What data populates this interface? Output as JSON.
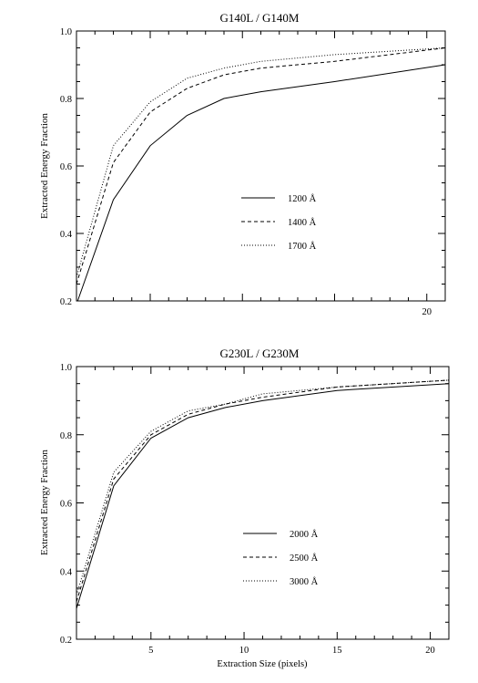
{
  "chart_data": [
    {
      "type": "line",
      "title": "G140L / G140M",
      "xlabel": "",
      "ylabel": "Extracted Energy Fraction",
      "xlim": [
        1,
        21
      ],
      "ylim": [
        0.2,
        1.0
      ],
      "x_ticks": [
        5,
        10,
        15,
        20
      ],
      "x_tick_labels": [
        "",
        "",
        "",
        "20"
      ],
      "y_ticks": [
        0.2,
        0.4,
        0.6,
        0.8,
        1.0
      ],
      "y_tick_labels": [
        "0.2",
        "0.4",
        "0.6",
        "0.8",
        "1.0"
      ],
      "grid": false,
      "legend_position": "center-right",
      "x": [
        1,
        3,
        5,
        7,
        9,
        11,
        15,
        21
      ],
      "series": [
        {
          "name": "1200 Å",
          "style": "solid",
          "values": [
            0.19,
            0.5,
            0.66,
            0.75,
            0.8,
            0.82,
            0.85,
            0.9
          ]
        },
        {
          "name": "1400 Å",
          "style": "dashed",
          "values": [
            0.25,
            0.61,
            0.76,
            0.83,
            0.87,
            0.89,
            0.91,
            0.95
          ]
        },
        {
          "name": "1700 Å",
          "style": "dotted",
          "values": [
            0.27,
            0.66,
            0.79,
            0.86,
            0.89,
            0.91,
            0.93,
            0.95
          ]
        }
      ]
    },
    {
      "type": "line",
      "title": "G230L / G230M",
      "xlabel": "Extraction Size (pixels)",
      "ylabel": "Extracted Energy Fraction",
      "xlim": [
        1,
        21
      ],
      "ylim": [
        0.2,
        1.0
      ],
      "x_ticks": [
        5,
        10,
        15,
        20
      ],
      "x_tick_labels": [
        "5",
        "10",
        "15",
        "20"
      ],
      "y_ticks": [
        0.2,
        0.4,
        0.6,
        0.8,
        1.0
      ],
      "y_tick_labels": [
        "0.2",
        "0.4",
        "0.6",
        "0.8",
        "1.0"
      ],
      "grid": false,
      "legend_position": "center-right",
      "x": [
        1,
        3,
        5,
        7,
        9,
        11,
        15,
        21
      ],
      "series": [
        {
          "name": "2000 Å",
          "style": "solid",
          "values": [
            0.29,
            0.65,
            0.79,
            0.85,
            0.88,
            0.9,
            0.93,
            0.95
          ]
        },
        {
          "name": "2500 Å",
          "style": "dashed",
          "values": [
            0.31,
            0.67,
            0.8,
            0.86,
            0.89,
            0.91,
            0.94,
            0.96
          ]
        },
        {
          "name": "3000 Å",
          "style": "dotted",
          "values": [
            0.33,
            0.69,
            0.81,
            0.87,
            0.89,
            0.92,
            0.94,
            0.96
          ]
        }
      ]
    }
  ]
}
